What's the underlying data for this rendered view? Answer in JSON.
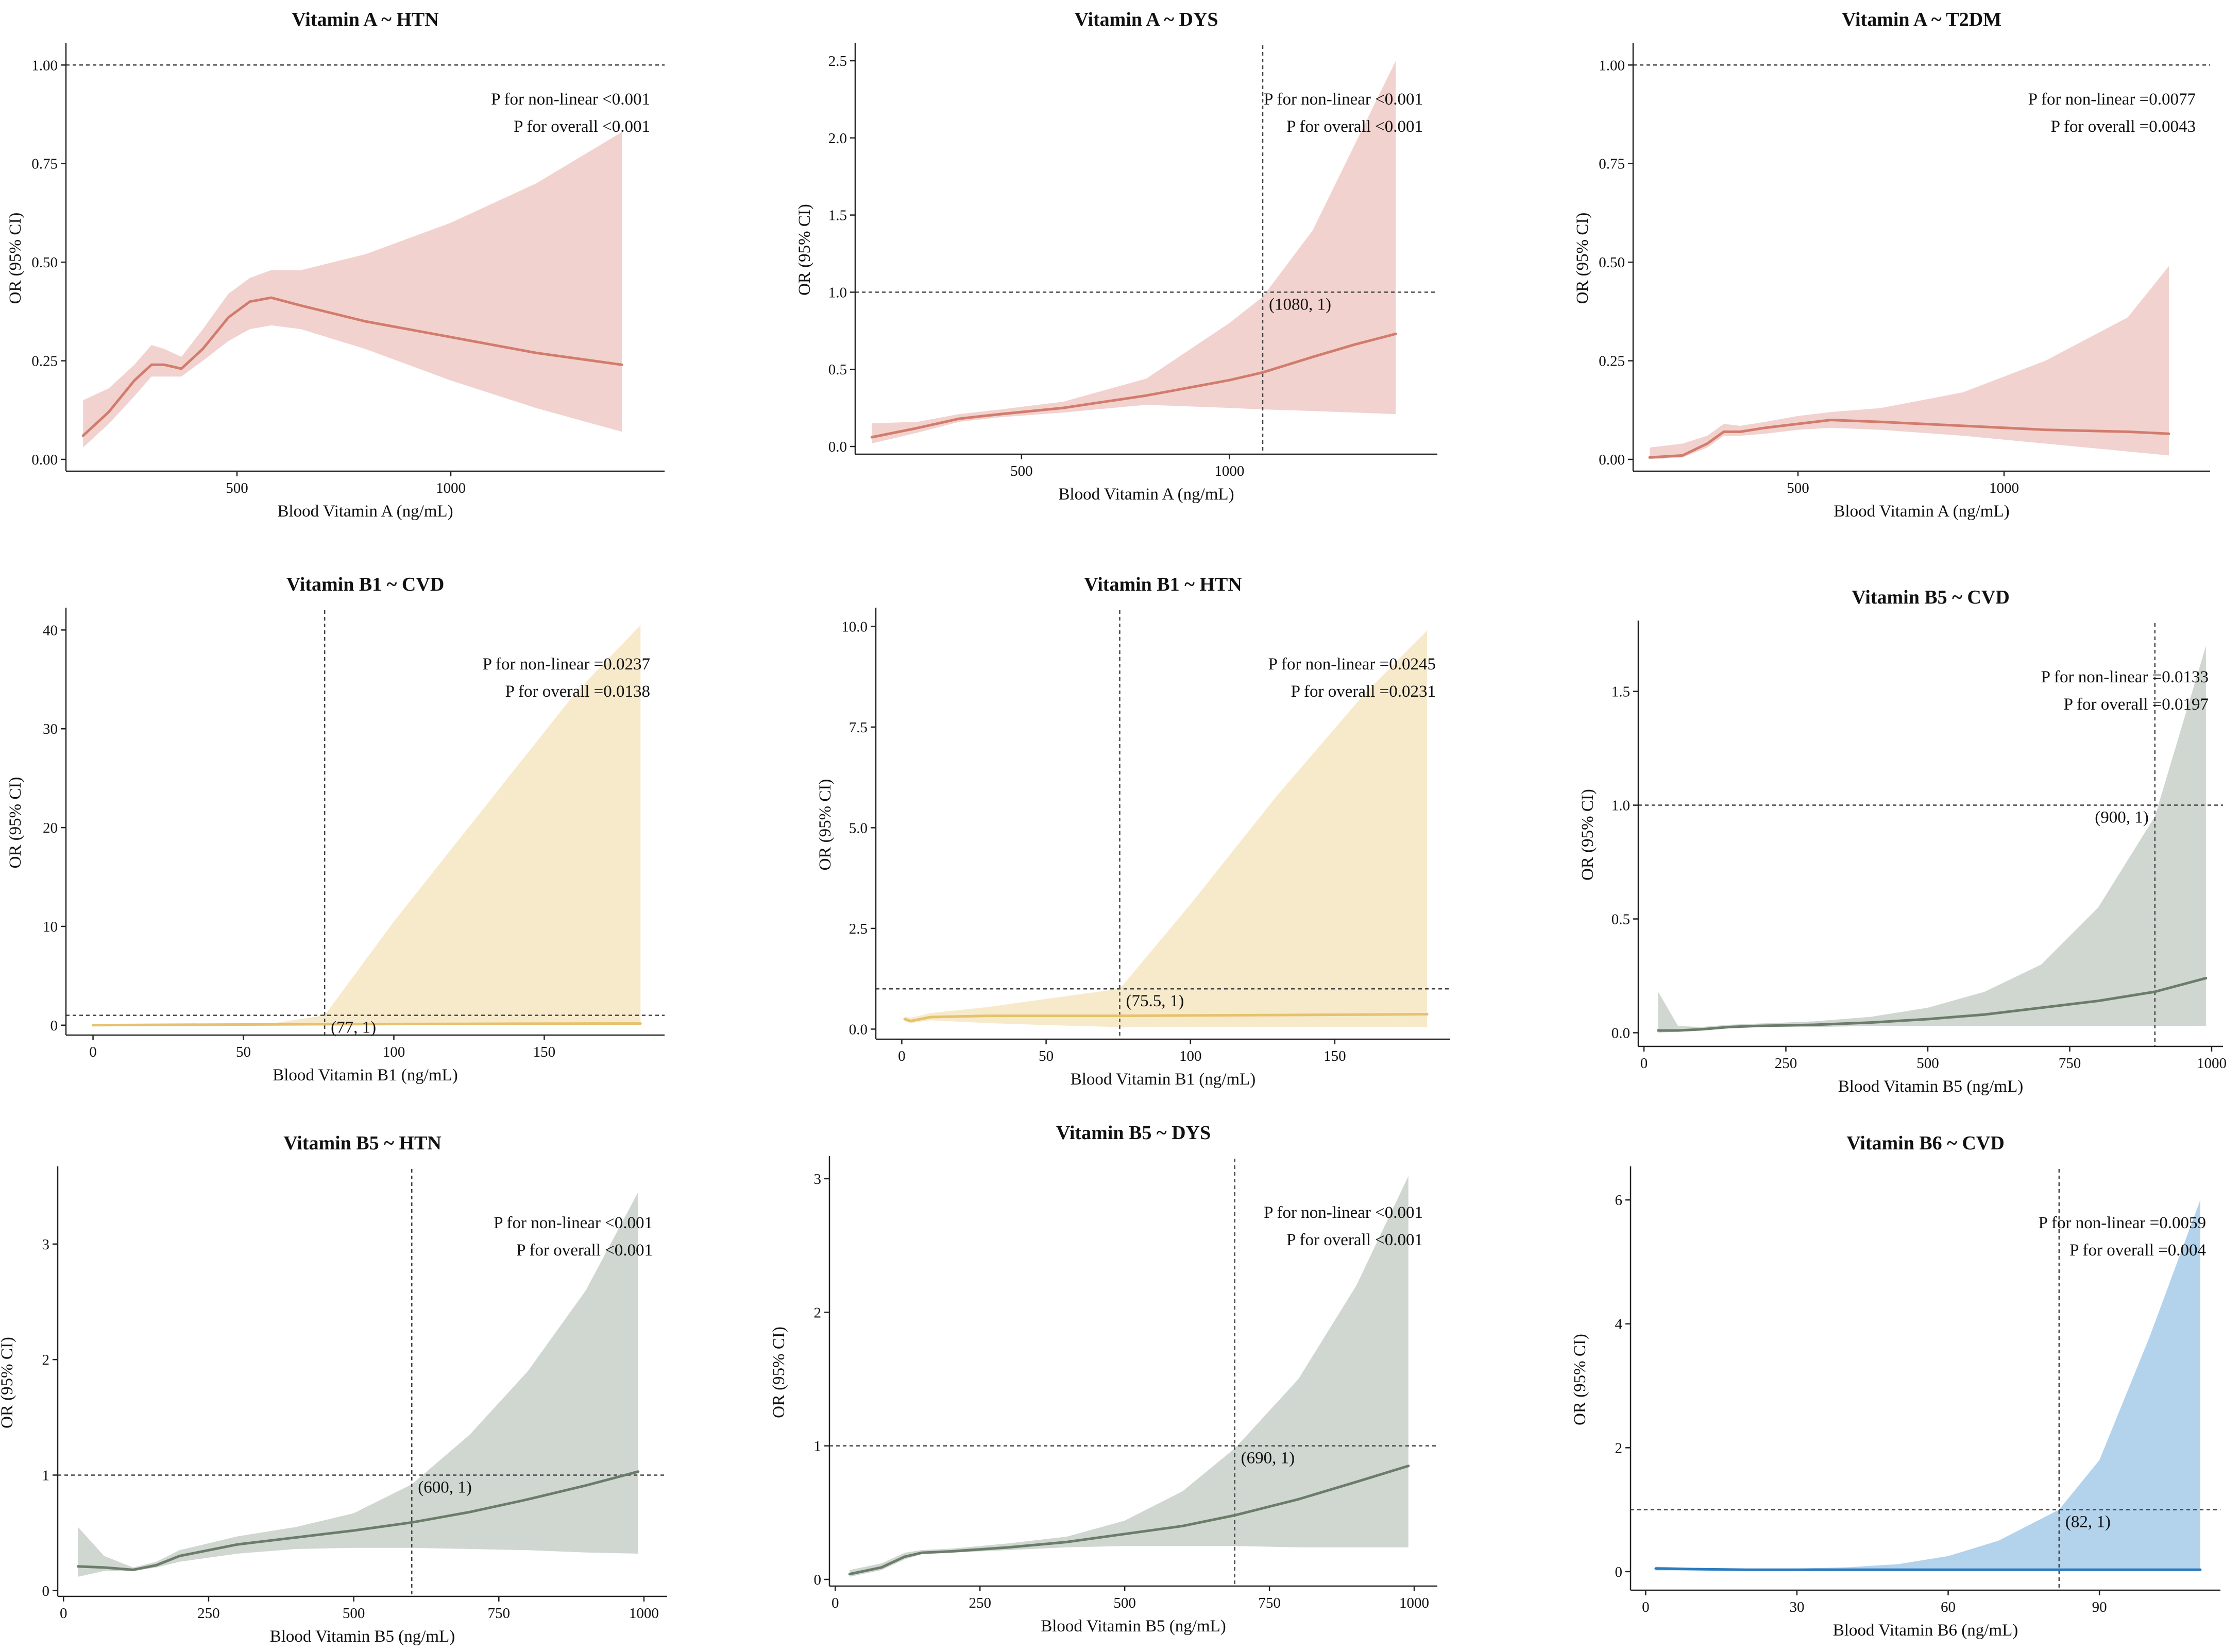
{
  "chart_data": [
    {
      "id": "vitA-htn",
      "type": "area",
      "title": "Vitamin A ~ HTN",
      "xlabel": "Blood Vitamin A (ng/mL)",
      "ylabel": "OR (95% CI)",
      "xlim": [
        100,
        1500
      ],
      "ylim": [
        -0.03,
        1.05
      ],
      "xticks": [
        500,
        1000
      ],
      "xtick_labels": [
        "500",
        "1000"
      ],
      "yticks": [
        0,
        0.25,
        0.5,
        0.75,
        1.0
      ],
      "ytick_labels": [
        "0.00",
        "0.25",
        "0.50",
        "0.75",
        "1.00"
      ],
      "hline": 1.0,
      "vline": null,
      "ref_label": "",
      "annotations": [
        "P for non-linear <0.001",
        "P for overall <0.001"
      ],
      "line_color": "#d27c6d",
      "band_color": "#f2d2ce",
      "x": [
        140,
        200,
        260,
        300,
        330,
        370,
        420,
        480,
        530,
        580,
        650,
        800,
        1000,
        1200,
        1400
      ],
      "y": [
        0.06,
        0.12,
        0.2,
        0.24,
        0.24,
        0.23,
        0.28,
        0.36,
        0.4,
        0.41,
        0.39,
        0.35,
        0.31,
        0.27,
        0.24
      ],
      "lower": [
        0.03,
        0.09,
        0.16,
        0.21,
        0.21,
        0.21,
        0.25,
        0.3,
        0.33,
        0.34,
        0.33,
        0.28,
        0.2,
        0.13,
        0.07
      ],
      "upper": [
        0.15,
        0.18,
        0.24,
        0.29,
        0.28,
        0.26,
        0.33,
        0.42,
        0.46,
        0.48,
        0.48,
        0.52,
        0.6,
        0.7,
        0.83
      ]
    },
    {
      "id": "vitA-dys",
      "type": "area",
      "title": "Vitamin A ~ DYS",
      "xlabel": "Blood Vitamin A (ng/mL)",
      "ylabel": "OR (95% CI)",
      "xlim": [
        100,
        1500
      ],
      "ylim": [
        -0.05,
        2.6
      ],
      "xticks": [
        500,
        1000
      ],
      "xtick_labels": [
        "500",
        "1000"
      ],
      "yticks": [
        0,
        0.5,
        1.0,
        1.5,
        2.0,
        2.5
      ],
      "ytick_labels": [
        "0.0",
        "0.5",
        "1.0",
        "1.5",
        "2.0",
        "2.5"
      ],
      "hline": 1.0,
      "vline": 1080,
      "ref_label": "(1080, 1)",
      "annotations": [
        "P for non-linear <0.001",
        "P for overall <0.001"
      ],
      "line_color": "#d27c6d",
      "band_color": "#f2d2ce",
      "x": [
        140,
        250,
        350,
        450,
        600,
        800,
        1000,
        1080,
        1200,
        1300,
        1400
      ],
      "y": [
        0.06,
        0.12,
        0.18,
        0.21,
        0.25,
        0.33,
        0.43,
        0.48,
        0.58,
        0.66,
        0.73
      ],
      "lower": [
        0.02,
        0.09,
        0.16,
        0.19,
        0.22,
        0.27,
        0.25,
        0.24,
        0.23,
        0.22,
        0.21
      ],
      "upper": [
        0.15,
        0.16,
        0.21,
        0.24,
        0.29,
        0.44,
        0.8,
        0.97,
        1.4,
        1.95,
        2.5
      ]
    },
    {
      "id": "vitA-t2dm",
      "type": "area",
      "title": "Vitamin A ~ T2DM",
      "xlabel": "Blood Vitamin A (ng/mL)",
      "ylabel": "OR (95% CI)",
      "xlim": [
        100,
        1500
      ],
      "ylim": [
        -0.03,
        1.05
      ],
      "xticks": [
        500,
        1000
      ],
      "xtick_labels": [
        "500",
        "1000"
      ],
      "yticks": [
        0,
        0.25,
        0.5,
        0.75,
        1.0
      ],
      "ytick_labels": [
        "0.00",
        "0.25",
        "0.50",
        "0.75",
        "1.00"
      ],
      "hline": 1.0,
      "vline": null,
      "ref_label": "",
      "annotations": [
        "P for non-linear =0.0077",
        "P for overall =0.0043"
      ],
      "line_color": "#d27c6d",
      "band_color": "#f2d2ce",
      "x": [
        140,
        220,
        280,
        320,
        360,
        420,
        500,
        580,
        700,
        900,
        1100,
        1300,
        1400
      ],
      "y": [
        0.005,
        0.01,
        0.04,
        0.07,
        0.07,
        0.08,
        0.09,
        0.1,
        0.095,
        0.085,
        0.075,
        0.07,
        0.065
      ],
      "lower": [
        0.0,
        0.005,
        0.03,
        0.06,
        0.06,
        0.065,
        0.075,
        0.08,
        0.075,
        0.06,
        0.04,
        0.02,
        0.01
      ],
      "upper": [
        0.03,
        0.04,
        0.06,
        0.09,
        0.085,
        0.095,
        0.11,
        0.12,
        0.13,
        0.17,
        0.25,
        0.36,
        0.49
      ]
    },
    {
      "id": "vitB1-cvd",
      "type": "area",
      "title": "Vitamin B1 ~ CVD",
      "xlabel": "Blood Vitamin B1 (ng/mL)",
      "ylabel": "OR (95% CI)",
      "xlim": [
        -9,
        190
      ],
      "ylim": [
        -1,
        42
      ],
      "xticks": [
        0,
        50,
        100,
        150
      ],
      "xtick_labels": [
        "0",
        "50",
        "100",
        "150"
      ],
      "yticks": [
        0,
        10,
        20,
        30,
        40
      ],
      "ytick_labels": [
        "0",
        "10",
        "20",
        "30",
        "40"
      ],
      "hline": 1.0,
      "vline": 77,
      "ref_label": "(77, 1)",
      "annotations": [
        "P for non-linear =0.0237",
        "P for overall =0.0138"
      ],
      "line_color": "#e5c26b",
      "band_color": "#f7eacb",
      "x": [
        0,
        30,
        60,
        77,
        100,
        130,
        160,
        182
      ],
      "y": [
        0.0,
        0.05,
        0.08,
        0.1,
        0.12,
        0.14,
        0.16,
        0.17
      ],
      "lower": [
        -0.05,
        0.0,
        0.02,
        0.05,
        0.05,
        0.05,
        0.05,
        0.05
      ],
      "upper": [
        0.1,
        0.15,
        0.2,
        1.0,
        10.5,
        22.0,
        33.5,
        40.5
      ]
    },
    {
      "id": "vitB1-htn",
      "type": "area",
      "title": "Vitamin B1 ~ HTN",
      "xlabel": "Blood Vitamin B1 (ng/mL)",
      "ylabel": "OR (95% CI)",
      "xlim": [
        -9,
        190
      ],
      "ylim": [
        -0.25,
        10.4
      ],
      "xticks": [
        0,
        50,
        100,
        150
      ],
      "xtick_labels": [
        "0",
        "50",
        "100",
        "150"
      ],
      "yticks": [
        0,
        2.5,
        5.0,
        7.5,
        10.0
      ],
      "ytick_labels": [
        "0.0",
        "2.5",
        "5.0",
        "7.5",
        "10.0"
      ],
      "hline": 1.0,
      "vline": 75.5,
      "ref_label": "(75.5, 1)",
      "annotations": [
        "P for non-linear =0.0245",
        "P for overall =0.0231"
      ],
      "line_color": "#e5c26b",
      "band_color": "#f7eacb",
      "x": [
        1,
        3,
        10,
        30,
        50,
        75.5,
        100,
        130,
        160,
        182
      ],
      "y": [
        0.25,
        0.2,
        0.3,
        0.33,
        0.33,
        0.33,
        0.34,
        0.35,
        0.36,
        0.37
      ],
      "lower": [
        0.2,
        0.15,
        0.22,
        0.15,
        0.1,
        0.05,
        0.05,
        0.05,
        0.05,
        0.05
      ],
      "upper": [
        0.32,
        0.28,
        0.4,
        0.55,
        0.75,
        1.0,
        3.1,
        5.8,
        8.3,
        9.9
      ]
    },
    {
      "id": "vitB5-cvd",
      "type": "area",
      "title": "Vitamin B5 ~ CVD",
      "xlabel": "Blood Vitamin B5 (ng/mL)",
      "ylabel": "OR (95% CI)",
      "xlim": [
        -10,
        1020
      ],
      "ylim": [
        -0.06,
        1.8
      ],
      "xticks": [
        0,
        250,
        500,
        750,
        1000
      ],
      "xtick_labels": [
        "0",
        "250",
        "500",
        "750",
        "1000"
      ],
      "yticks": [
        0,
        0.5,
        1.0,
        1.5
      ],
      "ytick_labels": [
        "0.0",
        "0.5",
        "1.0",
        "1.5"
      ],
      "hline": 1.0,
      "vline": 900,
      "ref_label": "(900, 1)",
      "annotations": [
        "P for non-linear =0.0133",
        "P for overall =0.0197"
      ],
      "line_color": "#6b7d6a",
      "band_color": "#cfd7d0",
      "x": [
        25,
        60,
        100,
        150,
        200,
        300,
        400,
        500,
        600,
        700,
        800,
        900,
        990
      ],
      "y": [
        0.01,
        0.01,
        0.015,
        0.025,
        0.03,
        0.035,
        0.045,
        0.06,
        0.08,
        0.11,
        0.14,
        0.18,
        0.24
      ],
      "lower": [
        0.0,
        0.005,
        0.01,
        0.02,
        0.025,
        0.025,
        0.03,
        0.03,
        0.03,
        0.03,
        0.03,
        0.03,
        0.03
      ],
      "upper": [
        0.18,
        0.03,
        0.025,
        0.035,
        0.04,
        0.05,
        0.07,
        0.11,
        0.18,
        0.3,
        0.55,
        0.95,
        1.7
      ]
    },
    {
      "id": "vitB5-htn",
      "type": "area",
      "title": "Vitamin B5 ~ HTN",
      "xlabel": "Blood Vitamin B5 (ng/mL)",
      "ylabel": "OR (95% CI)",
      "xlim": [
        -10,
        1040
      ],
      "ylim": [
        -0.05,
        3.65
      ],
      "xticks": [
        0,
        250,
        500,
        750,
        1000
      ],
      "xtick_labels": [
        "0",
        "250",
        "500",
        "750",
        "1000"
      ],
      "yticks": [
        0,
        1,
        2,
        3
      ],
      "ytick_labels": [
        "0",
        "1",
        "2",
        "3"
      ],
      "hline": 1.0,
      "vline": 600,
      "ref_label": "(600, 1)",
      "annotations": [
        "P for non-linear <0.001",
        "P for overall <0.001"
      ],
      "line_color": "#6b7d6a",
      "band_color": "#cfd7d0",
      "x": [
        25,
        70,
        120,
        160,
        200,
        300,
        400,
        500,
        600,
        700,
        800,
        900,
        990
      ],
      "y": [
        0.21,
        0.2,
        0.18,
        0.22,
        0.3,
        0.4,
        0.46,
        0.52,
        0.59,
        0.68,
        0.79,
        0.91,
        1.03
      ],
      "lower": [
        0.12,
        0.17,
        0.17,
        0.2,
        0.25,
        0.32,
        0.36,
        0.37,
        0.37,
        0.36,
        0.35,
        0.33,
        0.32
      ],
      "upper": [
        0.55,
        0.3,
        0.2,
        0.25,
        0.35,
        0.47,
        0.55,
        0.67,
        0.92,
        1.35,
        1.9,
        2.6,
        3.45
      ]
    },
    {
      "id": "vitB5-dys",
      "type": "area",
      "title": "Vitamin B5 ~ DYS",
      "xlabel": "Blood Vitamin B5 (ng/mL)",
      "ylabel": "OR (95% CI)",
      "xlim": [
        -10,
        1040
      ],
      "ylim": [
        -0.05,
        3.15
      ],
      "xticks": [
        0,
        250,
        500,
        750,
        1000
      ],
      "xtick_labels": [
        "0",
        "250",
        "500",
        "750",
        "1000"
      ],
      "yticks": [
        0,
        1,
        2,
        3
      ],
      "ytick_labels": [
        "0",
        "1",
        "2",
        "3"
      ],
      "hline": 1.0,
      "vline": 690,
      "ref_label": "(690, 1)",
      "annotations": [
        "P for non-linear <0.001",
        "P for overall <0.001"
      ],
      "line_color": "#6b7d6a",
      "band_color": "#cfd7d0",
      "x": [
        25,
        80,
        120,
        150,
        200,
        300,
        400,
        500,
        600,
        690,
        800,
        900,
        990
      ],
      "y": [
        0.04,
        0.09,
        0.17,
        0.2,
        0.21,
        0.24,
        0.28,
        0.34,
        0.4,
        0.48,
        0.6,
        0.73,
        0.85
      ],
      "lower": [
        0.02,
        0.07,
        0.15,
        0.19,
        0.2,
        0.22,
        0.24,
        0.25,
        0.25,
        0.25,
        0.24,
        0.24,
        0.24
      ],
      "upper": [
        0.07,
        0.12,
        0.2,
        0.22,
        0.23,
        0.27,
        0.32,
        0.44,
        0.66,
        0.98,
        1.5,
        2.2,
        3.02
      ]
    },
    {
      "id": "vitB6-cvd",
      "type": "area",
      "title": "Vitamin B6 ~ CVD",
      "xlabel": "Blood Vitamin B6 (ng/mL)",
      "ylabel": "OR (95% CI)",
      "xlim": [
        -3,
        114
      ],
      "ylim": [
        -0.3,
        6.5
      ],
      "xticks": [
        0,
        30,
        60,
        90
      ],
      "xtick_labels": [
        "0",
        "30",
        "60",
        "90"
      ],
      "yticks": [
        0,
        2,
        4,
        6
      ],
      "ytick_labels": [
        "0",
        "2",
        "4",
        "6"
      ],
      "hline": 1.0,
      "vline": 82,
      "ref_label": "(82, 1)",
      "annotations": [
        "P for non-linear =0.0059",
        "P for overall =0.004"
      ],
      "line_color": "#2b7bbf",
      "band_color": "#b3d2ec",
      "x": [
        2,
        10,
        20,
        30,
        40,
        50,
        60,
        70,
        82,
        90,
        100,
        110
      ],
      "y": [
        0.05,
        0.04,
        0.03,
        0.03,
        0.03,
        0.03,
        0.03,
        0.03,
        0.03,
        0.03,
        0.03,
        0.03
      ],
      "lower": [
        0.02,
        0.02,
        0.01,
        0.01,
        0.01,
        0.01,
        0.01,
        0.01,
        0.01,
        0.01,
        0.01,
        0.01
      ],
      "upper": [
        0.08,
        0.06,
        0.05,
        0.05,
        0.07,
        0.12,
        0.25,
        0.5,
        1.0,
        1.8,
        3.8,
        6.0
      ]
    }
  ]
}
